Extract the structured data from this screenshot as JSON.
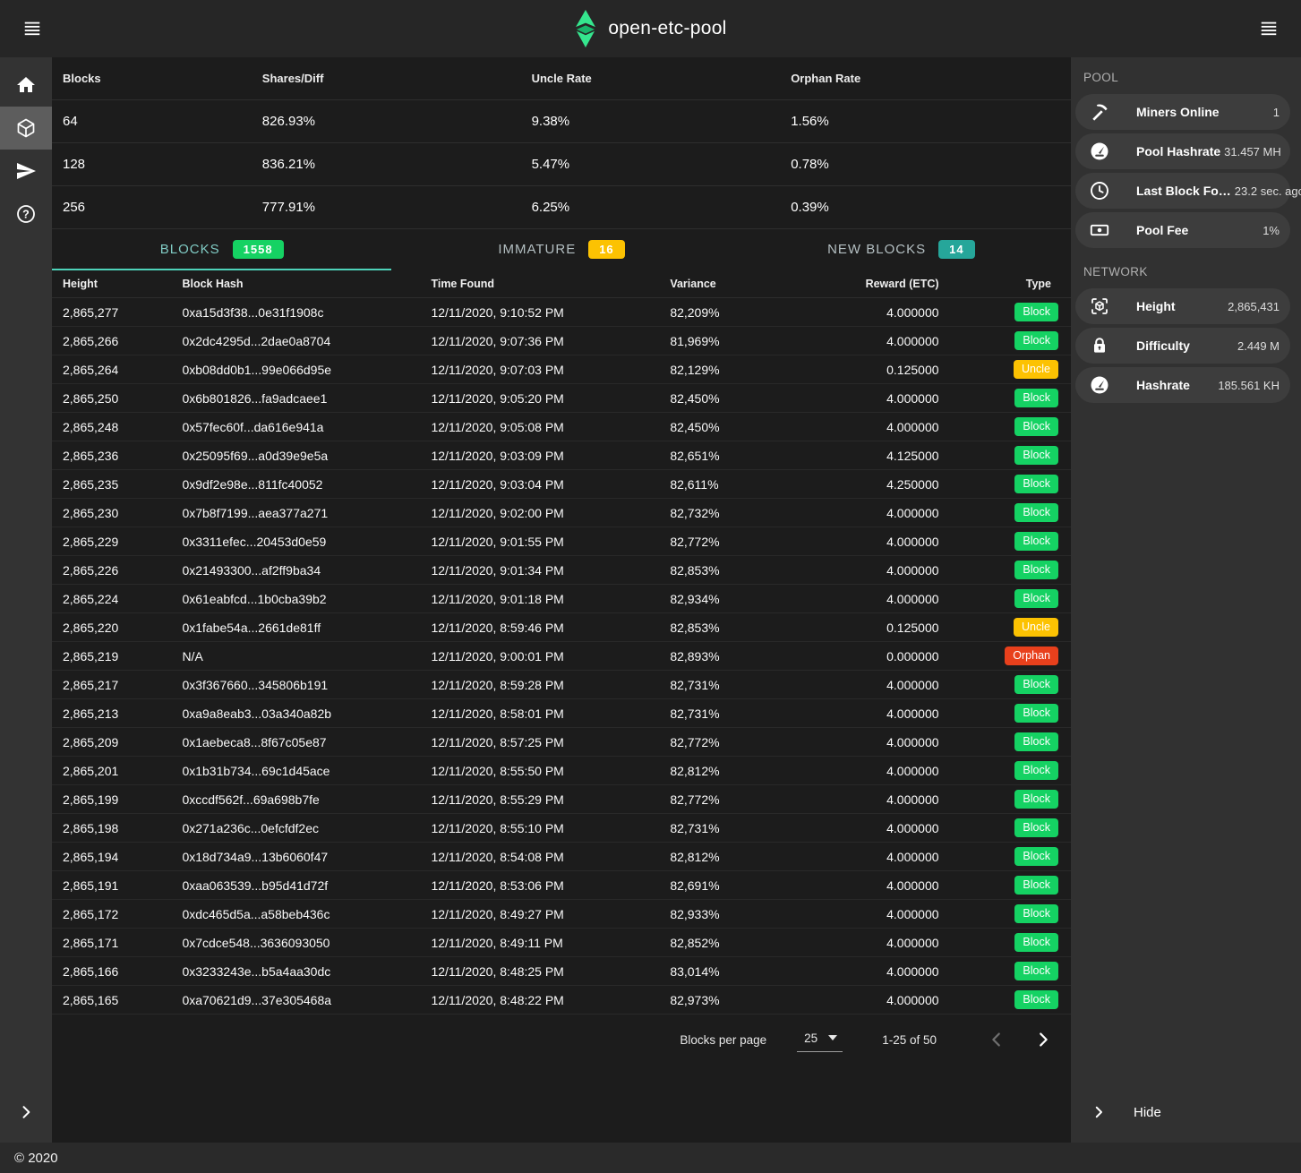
{
  "topbar": {
    "title": "open-etc-pool"
  },
  "left_sidebar": {
    "items": [
      {
        "name": "home",
        "icon": "home-icon",
        "active": false
      },
      {
        "name": "blocks",
        "icon": "cube-icon",
        "active": true
      },
      {
        "name": "payments",
        "icon": "send-icon",
        "active": false
      },
      {
        "name": "help",
        "icon": "help-icon",
        "active": false
      }
    ]
  },
  "stats_table": {
    "headers": [
      "Blocks",
      "Shares/Diff",
      "Uncle Rate",
      "Orphan Rate"
    ],
    "rows": [
      [
        "64",
        "826.93%",
        "9.38%",
        "1.56%"
      ],
      [
        "128",
        "836.21%",
        "5.47%",
        "0.78%"
      ],
      [
        "256",
        "777.91%",
        "6.25%",
        "0.39%"
      ]
    ]
  },
  "tabs": [
    {
      "label": "BLOCKS",
      "badge": "1558",
      "badge_color": "#15d263",
      "active": true
    },
    {
      "label": "IMMATURE",
      "badge": "16",
      "badge_color": "#fcc202",
      "active": false
    },
    {
      "label": "NEW BLOCKS",
      "badge": "14",
      "badge_color": "#26a69a",
      "active": false
    }
  ],
  "blocks_table": {
    "headers": [
      "Height",
      "Block Hash",
      "Time Found",
      "Variance",
      "Reward (ETC)",
      "Type"
    ],
    "rows": [
      [
        "2,865,277",
        "0xa15d3f38...0e31f1908c",
        "12/11/2020, 9:10:52 PM",
        "82,209%",
        "4.000000",
        "Block"
      ],
      [
        "2,865,266",
        "0x2dc4295d...2dae0a8704",
        "12/11/2020, 9:07:36 PM",
        "81,969%",
        "4.000000",
        "Block"
      ],
      [
        "2,865,264",
        "0xb08dd0b1...99e066d95e",
        "12/11/2020, 9:07:03 PM",
        "82,129%",
        "0.125000",
        "Uncle"
      ],
      [
        "2,865,250",
        "0x6b801826...fa9adcaee1",
        "12/11/2020, 9:05:20 PM",
        "82,450%",
        "4.000000",
        "Block"
      ],
      [
        "2,865,248",
        "0x57fec60f...da616e941a",
        "12/11/2020, 9:05:08 PM",
        "82,450%",
        "4.000000",
        "Block"
      ],
      [
        "2,865,236",
        "0x25095f69...a0d39e9e5a",
        "12/11/2020, 9:03:09 PM",
        "82,651%",
        "4.125000",
        "Block"
      ],
      [
        "2,865,235",
        "0x9df2e98e...811fc40052",
        "12/11/2020, 9:03:04 PM",
        "82,611%",
        "4.250000",
        "Block"
      ],
      [
        "2,865,230",
        "0x7b8f7199...aea377a271",
        "12/11/2020, 9:02:00 PM",
        "82,732%",
        "4.000000",
        "Block"
      ],
      [
        "2,865,229",
        "0x3311efec...20453d0e59",
        "12/11/2020, 9:01:55 PM",
        "82,772%",
        "4.000000",
        "Block"
      ],
      [
        "2,865,226",
        "0x21493300...af2ff9ba34",
        "12/11/2020, 9:01:34 PM",
        "82,853%",
        "4.000000",
        "Block"
      ],
      [
        "2,865,224",
        "0x61eabfcd...1b0cba39b2",
        "12/11/2020, 9:01:18 PM",
        "82,934%",
        "4.000000",
        "Block"
      ],
      [
        "2,865,220",
        "0x1fabe54a...2661de81ff",
        "12/11/2020, 8:59:46 PM",
        "82,853%",
        "0.125000",
        "Uncle"
      ],
      [
        "2,865,219",
        "N/A",
        "12/11/2020, 9:00:01 PM",
        "82,893%",
        "0.000000",
        "Orphan"
      ],
      [
        "2,865,217",
        "0x3f367660...345806b191",
        "12/11/2020, 8:59:28 PM",
        "82,731%",
        "4.000000",
        "Block"
      ],
      [
        "2,865,213",
        "0xa9a8eab3...03a340a82b",
        "12/11/2020, 8:58:01 PM",
        "82,731%",
        "4.000000",
        "Block"
      ],
      [
        "2,865,209",
        "0x1aebeca8...8f67c05e87",
        "12/11/2020, 8:57:25 PM",
        "82,772%",
        "4.000000",
        "Block"
      ],
      [
        "2,865,201",
        "0x1b31b734...69c1d45ace",
        "12/11/2020, 8:55:50 PM",
        "82,812%",
        "4.000000",
        "Block"
      ],
      [
        "2,865,199",
        "0xccdf562f...69a698b7fe",
        "12/11/2020, 8:55:29 PM",
        "82,772%",
        "4.000000",
        "Block"
      ],
      [
        "2,865,198",
        "0x271a236c...0efcfdf2ec",
        "12/11/2020, 8:55:10 PM",
        "82,731%",
        "4.000000",
        "Block"
      ],
      [
        "2,865,194",
        "0x18d734a9...13b6060f47",
        "12/11/2020, 8:54:08 PM",
        "82,812%",
        "4.000000",
        "Block"
      ],
      [
        "2,865,191",
        "0xaa063539...b95d41d72f",
        "12/11/2020, 8:53:06 PM",
        "82,691%",
        "4.000000",
        "Block"
      ],
      [
        "2,865,172",
        "0xdc465d5a...a58beb436c",
        "12/11/2020, 8:49:27 PM",
        "82,933%",
        "4.000000",
        "Block"
      ],
      [
        "2,865,171",
        "0x7cdce548...3636093050",
        "12/11/2020, 8:49:11 PM",
        "82,852%",
        "4.000000",
        "Block"
      ],
      [
        "2,865,166",
        "0x3233243e...b5a4aa30dc",
        "12/11/2020, 8:48:25 PM",
        "83,014%",
        "4.000000",
        "Block"
      ],
      [
        "2,865,165",
        "0xa70621d9...37e305468a",
        "12/11/2020, 8:48:22 PM",
        "82,973%",
        "4.000000",
        "Block"
      ]
    ]
  },
  "badge_colors": {
    "Block": "#15d263",
    "Uncle": "#fcc202",
    "Orphan": "#e8401c"
  },
  "pagination": {
    "label": "Blocks per page",
    "per_page": "25",
    "range": "1-25 of 50"
  },
  "right_sidebar": {
    "pool": {
      "title": "POOL",
      "items": [
        {
          "icon": "pickaxe-icon",
          "label": "Miners Online",
          "value": "1"
        },
        {
          "icon": "gauge-icon",
          "label": "Pool Hashrate",
          "value": "31.457 MH"
        },
        {
          "icon": "clock-icon",
          "label": "Last Block Fo…",
          "value": "23.2 sec. ago"
        },
        {
          "icon": "banknote-icon",
          "label": "Pool Fee",
          "value": "1%"
        }
      ]
    },
    "network": {
      "title": "NETWORK",
      "items": [
        {
          "icon": "cube-scan-icon",
          "label": "Height",
          "value": "2,865,431"
        },
        {
          "icon": "lock-icon",
          "label": "Difficulty",
          "value": "2.449 M"
        },
        {
          "icon": "gauge-icon",
          "label": "Hashrate",
          "value": "185.561 KH"
        }
      ]
    },
    "hide_label": "Hide"
  },
  "footer": {
    "copyright": "© 2020"
  },
  "colors": {
    "accent_teal": "#4ed3ba",
    "tab_active_text": "#80cbc4",
    "logo_green": "#35e68e",
    "logo_green_dark": "#19b56a",
    "disabled_chevron": "#6f6f6f"
  }
}
